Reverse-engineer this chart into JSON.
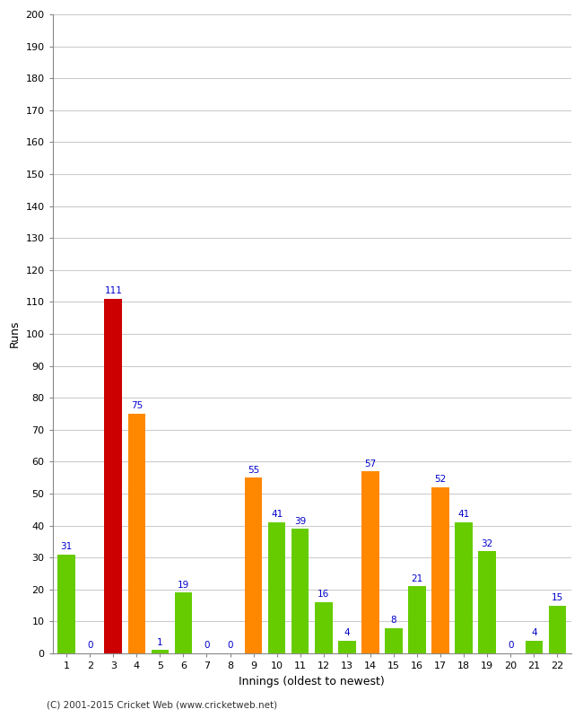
{
  "title": "",
  "xlabel": "Innings (oldest to newest)",
  "ylabel": "Runs",
  "categories": [
    "1",
    "2",
    "3",
    "4",
    "5",
    "6",
    "7",
    "8",
    "9",
    "10",
    "11",
    "12",
    "13",
    "14",
    "15",
    "16",
    "17",
    "18",
    "19",
    "20",
    "21",
    "22"
  ],
  "values": [
    31,
    0,
    111,
    75,
    1,
    19,
    0,
    0,
    55,
    41,
    39,
    16,
    4,
    57,
    8,
    21,
    52,
    41,
    32,
    0,
    4,
    15
  ],
  "colors": [
    "#66cc00",
    "#66cc00",
    "#cc0000",
    "#ff8800",
    "#66cc00",
    "#66cc00",
    "#66cc00",
    "#66cc00",
    "#ff8800",
    "#66cc00",
    "#66cc00",
    "#66cc00",
    "#66cc00",
    "#ff8800",
    "#66cc00",
    "#66cc00",
    "#ff8800",
    "#66cc00",
    "#66cc00",
    "#66cc00",
    "#66cc00",
    "#66cc00"
  ],
  "ylim": [
    0,
    200
  ],
  "yticks": [
    0,
    10,
    20,
    30,
    40,
    50,
    60,
    70,
    80,
    90,
    100,
    110,
    120,
    130,
    140,
    150,
    160,
    170,
    180,
    190,
    200
  ],
  "label_color": "#0000cc",
  "bg_color": "#ffffff",
  "grid_color": "#cccccc",
  "footer": "(C) 2001-2015 Cricket Web (www.cricketweb.net)",
  "bar_width": 0.75,
  "label_fontsize": 7.5,
  "tick_fontsize": 8,
  "axis_label_fontsize": 9
}
